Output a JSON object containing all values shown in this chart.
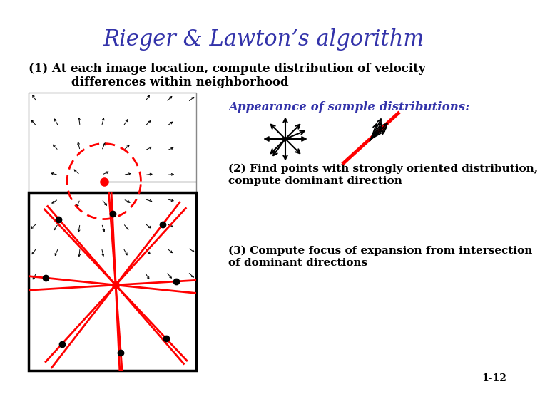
{
  "title": "Rieger & Lawton’s algorithm",
  "title_color": "#3333aa",
  "title_fontsize": 22,
  "bg_color": "#ffffff",
  "text1_line1": "(1) At each image location, compute distribution of velocity",
  "text1_line2": "differences within neighborhood",
  "text2": "Appearance of sample distributions:",
  "text2_color": "#3333aa",
  "text3_line1": "(2) Find points with strongly oriented distribution,",
  "text3_line2": "compute dominant direction",
  "text4_line1": "(3) Compute focus of expansion from intersection",
  "text4_line2": "of dominant directions",
  "page_num": "1-12"
}
